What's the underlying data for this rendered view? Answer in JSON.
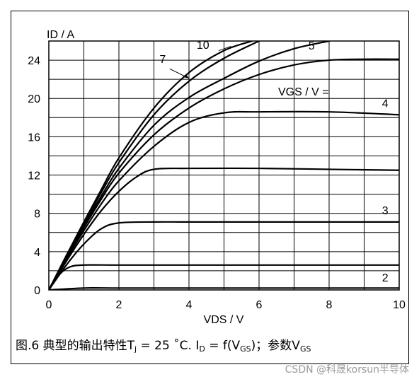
{
  "chart_data": {
    "type": "line",
    "ylabel": "ID / A",
    "xlabel": "VDS / V",
    "legend_title": "VGS / V =",
    "xlim": [
      0,
      10
    ],
    "ylim": [
      0,
      26
    ],
    "xticks": [
      0,
      2,
      4,
      6,
      8,
      10
    ],
    "yticks": [
      0,
      4,
      8,
      12,
      16,
      20,
      24
    ],
    "grid": true,
    "series": [
      {
        "name": "2",
        "x": [
          0,
          1,
          2,
          4,
          6,
          8,
          10
        ],
        "y": [
          0,
          0.2,
          0.2,
          0.2,
          0.2,
          0.2,
          0.2
        ]
      },
      {
        "name": "3",
        "x": [
          0,
          0.3,
          0.6,
          1,
          2,
          4,
          6,
          8,
          10
        ],
        "y": [
          0,
          1.6,
          2.4,
          2.6,
          2.6,
          2.6,
          2.6,
          2.6,
          2.6
        ]
      },
      {
        "name": "",
        "x": [
          0,
          0.5,
          1,
          1.5,
          2,
          3,
          4,
          6,
          8,
          10
        ],
        "y": [
          0,
          2.6,
          4.8,
          6.4,
          7.0,
          7.1,
          7.1,
          7.1,
          7.1,
          7.1
        ]
      },
      {
        "name": "",
        "x": [
          0,
          0.5,
          1,
          1.5,
          2,
          2.5,
          3,
          4,
          6,
          8,
          10
        ],
        "y": [
          0,
          3.0,
          5.8,
          8.3,
          10.3,
          11.8,
          12.6,
          12.7,
          12.7,
          12.6,
          12.5
        ]
      },
      {
        "name": "4",
        "x": [
          0,
          0.5,
          1,
          1.5,
          2,
          3,
          4,
          5,
          6,
          8,
          10
        ],
        "y": [
          0,
          3.2,
          6.2,
          9.0,
          11.4,
          15.0,
          17.5,
          18.5,
          18.6,
          18.6,
          18.3
        ]
      },
      {
        "name": "",
        "x": [
          0,
          0.5,
          1,
          1.5,
          2,
          3,
          4,
          5,
          6,
          7,
          8,
          9,
          10
        ],
        "y": [
          0,
          3.3,
          6.5,
          9.5,
          12.2,
          16.2,
          19.0,
          21.0,
          22.5,
          23.5,
          24.0,
          24.1,
          24.1
        ]
      },
      {
        "name": "5",
        "x": [
          0,
          0.5,
          1,
          1.5,
          2,
          3,
          4,
          5,
          6,
          7,
          8
        ],
        "y": [
          0,
          3.4,
          6.7,
          9.8,
          12.7,
          17.2,
          20.1,
          22.1,
          23.9,
          25.2,
          26.0
        ]
      },
      {
        "name": "7",
        "x": [
          0,
          0.5,
          1,
          1.5,
          2,
          3,
          4,
          5,
          6
        ],
        "y": [
          0,
          3.5,
          6.9,
          10.2,
          13.3,
          18.3,
          21.8,
          24.2,
          26.0
        ]
      },
      {
        "name": "10",
        "x": [
          0,
          0.5,
          1,
          1.5,
          2,
          3,
          4,
          5,
          5.8
        ],
        "y": [
          0,
          3.6,
          7.1,
          10.5,
          13.8,
          19.0,
          22.7,
          25.0,
          26.0
        ]
      }
    ]
  },
  "caption": {
    "prefix": "图.6 典型的输出特性T",
    "tj_sub": "j",
    "mid1": " = 25 ˚C. I",
    "id_sub": "D",
    "mid2": " = f(V",
    "vgs_sub": "GS",
    "mid3": ")；参数V",
    "param_sub": "GS"
  },
  "watermark": "CSDN @科晟korsun半导体"
}
